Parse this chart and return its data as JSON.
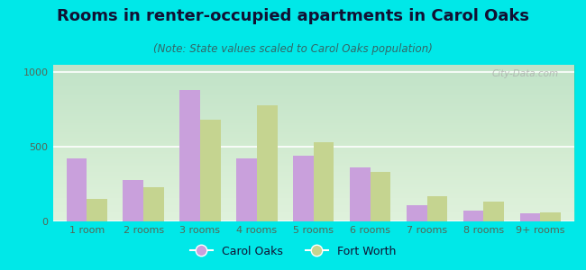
{
  "title": "Rooms in renter-occupied apartments in Carol Oaks",
  "subtitle": "(Note: State values scaled to Carol Oaks population)",
  "categories": [
    "1 room",
    "2 rooms",
    "3 rooms",
    "4 rooms",
    "5 rooms",
    "6 rooms",
    "7 rooms",
    "8 rooms",
    "9+ rooms"
  ],
  "carol_oaks": [
    420,
    280,
    880,
    420,
    440,
    365,
    110,
    75,
    55
  ],
  "fort_worth": [
    150,
    230,
    680,
    780,
    530,
    330,
    170,
    135,
    60
  ],
  "carol_oaks_color": "#c9a0dc",
  "fort_worth_color": "#c5d490",
  "background_outer": "#00e8e8",
  "ylim": [
    0,
    1050
  ],
  "yticks": [
    0,
    500,
    1000
  ],
  "legend_carol_oaks": "Carol Oaks",
  "legend_fort_worth": "Fort Worth",
  "bar_width": 0.36,
  "title_fontsize": 13,
  "subtitle_fontsize": 8.5,
  "tick_fontsize": 8,
  "legend_fontsize": 9,
  "title_color": "#111133",
  "subtitle_color": "#336666",
  "tick_color": "#556655"
}
